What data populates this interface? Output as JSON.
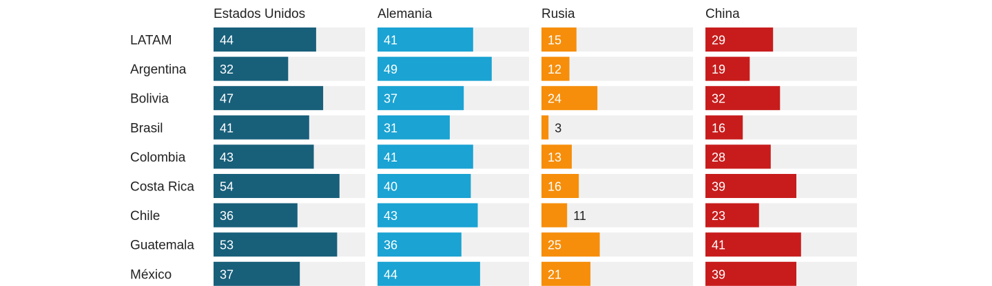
{
  "chart_data": {
    "type": "bar",
    "title": "",
    "xlabel": "",
    "ylabel": "",
    "xlim": [
      0,
      65
    ],
    "categories": [
      "LATAM",
      "Argentina",
      "Bolivia",
      "Brasil",
      "Colombia",
      "Costa Rica",
      "Chile",
      "Guatemala",
      "México"
    ],
    "series": [
      {
        "name": "Estados Unidos",
        "color": "#185f7a",
        "values": [
          44,
          32,
          47,
          41,
          43,
          54,
          36,
          53,
          37
        ]
      },
      {
        "name": "Alemania",
        "color": "#1aa3d3",
        "values": [
          41,
          49,
          37,
          31,
          41,
          40,
          43,
          36,
          44
        ]
      },
      {
        "name": "Rusia",
        "color": "#f68e0b",
        "values": [
          15,
          12,
          24,
          3,
          13,
          16,
          11,
          25,
          21
        ]
      },
      {
        "name": "China",
        "color": "#c81c1c",
        "values": [
          29,
          19,
          32,
          16,
          28,
          39,
          23,
          41,
          39
        ]
      }
    ],
    "track_color": "#f0f0f0"
  }
}
